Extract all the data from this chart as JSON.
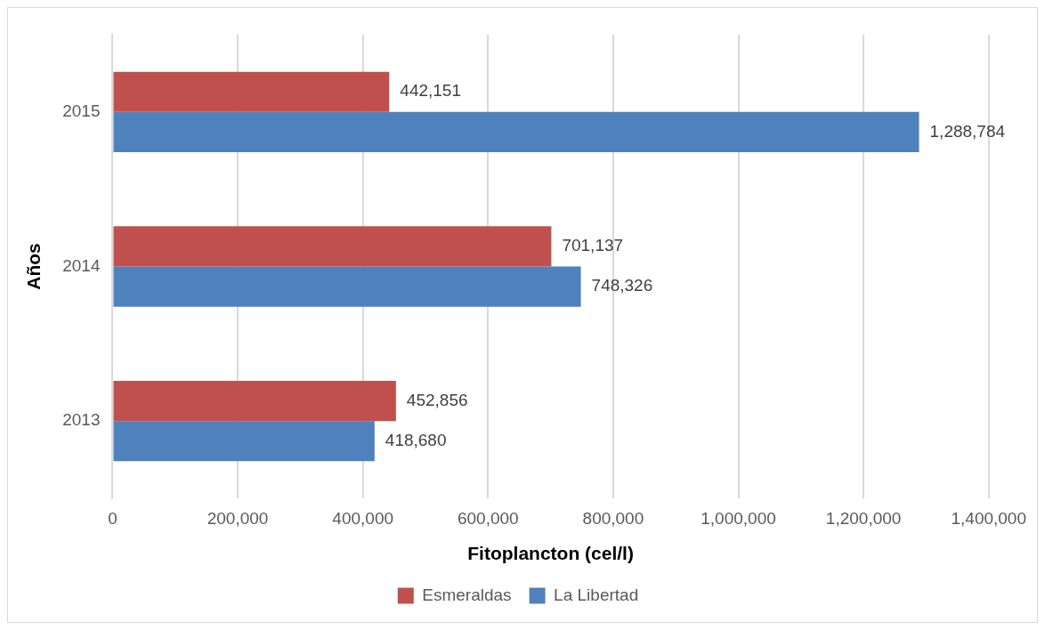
{
  "chart_data": {
    "type": "bar",
    "orientation": "horizontal",
    "xlabel": "Fitoplancton (cel/l)",
    "ylabel": "Años",
    "categories": [
      "2015",
      "2014",
      "2013"
    ],
    "series": [
      {
        "name": "Esmeraldas",
        "color": "#c0504d",
        "values": [
          442151,
          701137,
          452856
        ],
        "value_labels": [
          "442,151",
          "701,137",
          "452,856"
        ]
      },
      {
        "name": "La Libertad",
        "color": "#4f81bd",
        "values": [
          1288784,
          748326,
          418680
        ],
        "value_labels": [
          "1,288,784",
          "748,326",
          "418,680"
        ]
      }
    ],
    "xlim": [
      0,
      1400000
    ],
    "xticks": [
      0,
      {
        "value": 200000,
        "label": "200,000"
      },
      {
        "value": 400000,
        "label": "400,000"
      },
      {
        "value": 600000,
        "label": "600,000"
      },
      {
        "value": 800000,
        "label": "800,000"
      },
      {
        "value": 1000000,
        "label": "1,000,000"
      },
      {
        "value": 1200000,
        "label": "1,200,000"
      },
      {
        "value": 1400000,
        "label": "1,400,000"
      }
    ],
    "grid": "x",
    "legend": "bottom"
  }
}
